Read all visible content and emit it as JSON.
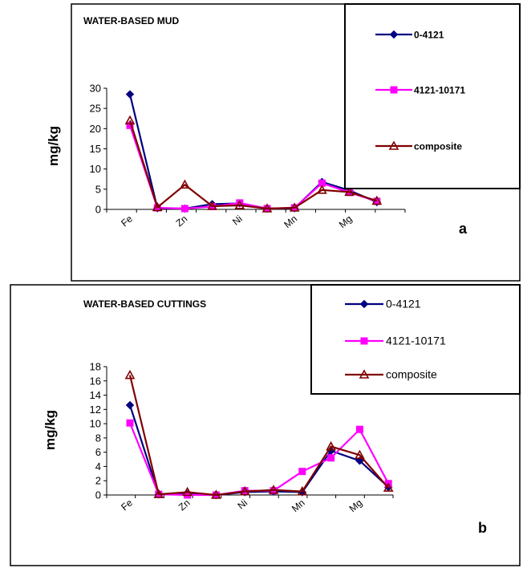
{
  "chart_data": [
    {
      "type": "line",
      "title": "WATER-BASED MUD",
      "xlabel": "",
      "ylabel": "mg/kg",
      "ylim": [
        0,
        30
      ],
      "yticks": [
        0,
        5,
        10,
        15,
        20,
        25,
        30
      ],
      "categories": [
        "Fe",
        "",
        "Zn",
        "",
        "Ni",
        "",
        "Mn",
        "",
        "Mg",
        ""
      ],
      "legend": "top-right",
      "panel_label": "a",
      "series": [
        {
          "name": "0-4121",
          "color": "#000080",
          "marker": "diamond",
          "values": [
            28.5,
            0.3,
            0.2,
            1.3,
            1.5,
            0.2,
            0.3,
            6.8,
            4.7,
            1.8
          ]
        },
        {
          "name": "4121-10171",
          "color": "#ff00ff",
          "marker": "square",
          "values": [
            20.8,
            0.4,
            0.2,
            0.7,
            1.6,
            0.2,
            0.4,
            6.5,
            4.2,
            2.0
          ]
        },
        {
          "name": "composite",
          "color": "#800000",
          "marker": "triangle",
          "values": [
            22.0,
            0.5,
            6.1,
            0.8,
            1.0,
            0.2,
            0.4,
            4.8,
            4.3,
            2.1
          ]
        }
      ]
    },
    {
      "type": "line",
      "title": "WATER-BASED CUTTINGS",
      "xlabel": "",
      "ylabel": "mg/kg",
      "ylim": [
        0,
        18
      ],
      "yticks": [
        0,
        2,
        4,
        6,
        8,
        10,
        12,
        14,
        16,
        18
      ],
      "categories": [
        "Fe",
        "",
        "Zn",
        "",
        "Ni",
        "",
        "Mn",
        "",
        "Mg",
        ""
      ],
      "legend": "top-right",
      "panel_label": "b",
      "series": [
        {
          "name": "0-4121",
          "color": "#000080",
          "marker": "diamond",
          "values": [
            12.6,
            0.1,
            0.1,
            0.0,
            0.4,
            0.5,
            0.4,
            6.2,
            4.8,
            1.1
          ]
        },
        {
          "name": "4121-10171",
          "color": "#ff00ff",
          "marker": "square",
          "values": [
            10.1,
            0.1,
            0.0,
            0.0,
            0.6,
            0.6,
            3.3,
            5.2,
            9.2,
            1.6
          ]
        },
        {
          "name": "composite",
          "color": "#800000",
          "marker": "triangle",
          "values": [
            16.8,
            0.1,
            0.4,
            0.0,
            0.5,
            0.7,
            0.5,
            6.8,
            5.6,
            1.0
          ]
        }
      ]
    }
  ]
}
